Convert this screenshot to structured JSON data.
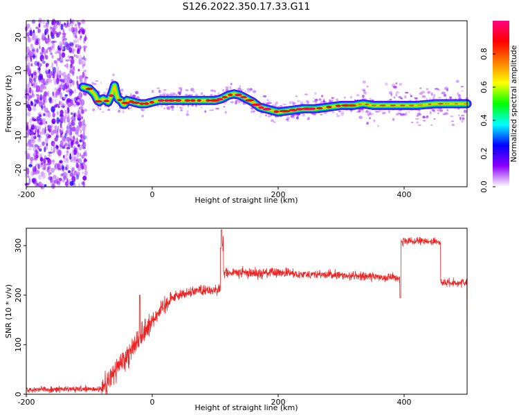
{
  "title": "S126.2022.350.17.33.G11",
  "chart_data": [
    {
      "type": "heatmap",
      "name": "spectrogram",
      "xlabel": "Height of straight line (km)",
      "ylabel": "Frequency (Hz)",
      "xlim": [
        -200,
        500
      ],
      "ylim": [
        -25,
        25
      ],
      "xticks": [
        -200,
        0,
        200,
        400
      ],
      "yticks": [
        -20,
        -10,
        0,
        10,
        20
      ],
      "ridge": {
        "x": [
          -110,
          -100,
          -92,
          -85,
          -78,
          -70,
          -65,
          -60,
          -55,
          -50,
          -45,
          -40,
          -30,
          -20,
          -10,
          0,
          10,
          20,
          40,
          60,
          80,
          100,
          110,
          120,
          130,
          140,
          150,
          160,
          170,
          180,
          190,
          200,
          220,
          240,
          260,
          280,
          300,
          320,
          335,
          350,
          380,
          400,
          420,
          450,
          480,
          500
        ],
        "y": [
          5,
          4.5,
          3,
          0.5,
          1.5,
          0.5,
          2.5,
          5.5,
          1.5,
          1,
          -0.5,
          1,
          0.5,
          0,
          0,
          0.5,
          1,
          1,
          1,
          1,
          1,
          1,
          1.5,
          2.5,
          3,
          2.5,
          1.5,
          0.5,
          -1,
          -1.5,
          -2,
          -2.5,
          -2,
          -1.5,
          -1.5,
          -1,
          -0.5,
          -0.5,
          0,
          -0.5,
          -0.5,
          -0.5,
          -0.5,
          0,
          0,
          0
        ]
      },
      "colorbar": {
        "label": "Normalized spectral amplitude",
        "range": [
          0,
          1
        ],
        "ticks": [
          0.0,
          0.2,
          0.4,
          0.6,
          0.8
        ],
        "colormap": [
          "#ffffff",
          "#8b00ff",
          "#0000ff",
          "#00ffff",
          "#00ff00",
          "#ffff00",
          "#ff7f00",
          "#ff0000",
          "#ff0080"
        ]
      }
    },
    {
      "type": "line",
      "name": "snr",
      "xlabel": "Height of straight line (km)",
      "ylabel": "SNR (10 * v/v)",
      "xlim": [
        -200,
        500
      ],
      "ylim": [
        0,
        335
      ],
      "xticks": [
        -200,
        0,
        200,
        400
      ],
      "yticks": [
        0,
        100,
        200,
        300
      ],
      "color": "#ee2222",
      "segments": [
        {
          "from": -200,
          "to": -80,
          "mean": 10,
          "noise": 7
        },
        {
          "from": -80,
          "to": 0,
          "mean_from": 10,
          "mean_to": 150,
          "noise": 30
        },
        {
          "from": 0,
          "to": 30,
          "mean_from": 150,
          "mean_to": 195,
          "noise": 20
        },
        {
          "from": 30,
          "to": 70,
          "mean_from": 195,
          "mean_to": 210,
          "noise": 12
        },
        {
          "from": 70,
          "to": 108,
          "mean": 210,
          "noise": 12
        },
        {
          "from": 108,
          "to": 113,
          "mean": 300,
          "noise": 25
        },
        {
          "from": 113,
          "to": 200,
          "mean": 245,
          "noise": 12
        },
        {
          "from": 200,
          "to": 395,
          "mean_from": 245,
          "mean_to": 235,
          "noise": 10
        },
        {
          "from": 395,
          "to": 458,
          "mean": 308,
          "noise": 9
        },
        {
          "from": 458,
          "to": 500,
          "mean": 225,
          "noise": 9
        }
      ],
      "spikes": [
        {
          "x": -20,
          "y": 200
        },
        {
          "x": 110,
          "y": 332
        },
        {
          "x": 394,
          "y": 195
        }
      ]
    }
  ]
}
